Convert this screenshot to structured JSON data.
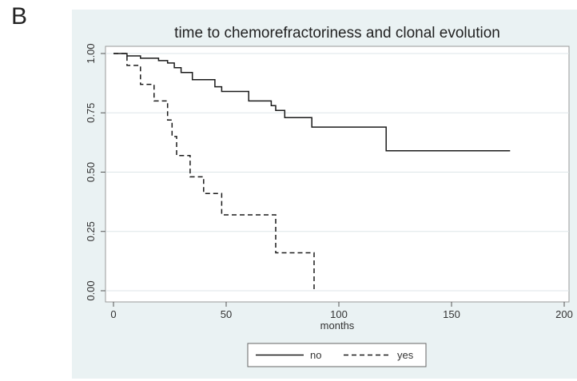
{
  "panel_label": "B",
  "chart_data": {
    "type": "line",
    "title": "time to chemorefractoriness and clonal evolution",
    "xlabel": "months",
    "ylabel": "",
    "xlim": [
      0,
      200
    ],
    "ylim": [
      0,
      1
    ],
    "xticks": [
      0,
      50,
      100,
      150,
      200
    ],
    "yticks": [
      0,
      0.25,
      0.5,
      0.75,
      1
    ],
    "ytick_labels": [
      "0.00",
      "0.25",
      "0.50",
      "0.75",
      "1.00"
    ],
    "grid": true,
    "legend_position": "bottom",
    "step": true,
    "series": [
      {
        "name": "no",
        "style": "solid",
        "color": "#1a1a1a",
        "x": [
          0,
          6,
          12,
          20,
          24,
          27,
          30,
          35,
          45,
          48,
          60,
          70,
          72,
          76,
          88,
          121,
          176
        ],
        "y": [
          1.0,
          0.99,
          0.98,
          0.97,
          0.96,
          0.94,
          0.92,
          0.89,
          0.86,
          0.84,
          0.8,
          0.78,
          0.76,
          0.73,
          0.69,
          0.59,
          0.59
        ]
      },
      {
        "name": "yes",
        "style": "dashed",
        "color": "#1a1a1a",
        "x": [
          0,
          6,
          12,
          18,
          24,
          26,
          28,
          34,
          40,
          48,
          72,
          89,
          89
        ],
        "y": [
          1.0,
          0.95,
          0.87,
          0.8,
          0.72,
          0.65,
          0.57,
          0.48,
          0.41,
          0.32,
          0.16,
          0.16,
          0.0
        ]
      }
    ]
  }
}
